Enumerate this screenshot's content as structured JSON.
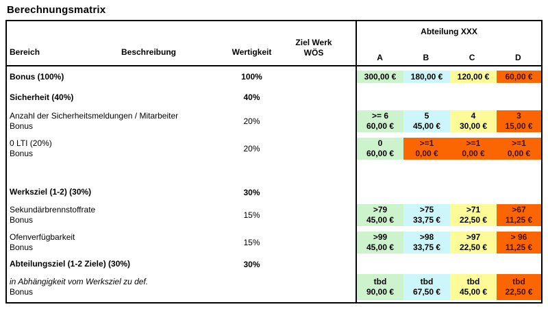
{
  "title": "Berechnungsmatrix",
  "colors": {
    "green": "#ccf3cc",
    "blue": "#ccf6fa",
    "yellow": "#fdfb98",
    "orange": "#fb6603",
    "orange_text": "#431200"
  },
  "header": {
    "bereich": "Bereich",
    "beschreibung": "Beschreibung",
    "wertigkeit": "Wertigkeit",
    "ziel_line1": "Ziel Werk",
    "ziel_line2": "WÖS",
    "abteilung": "Abteilung XXX",
    "cols": [
      "A",
      "B",
      "C",
      "D"
    ]
  },
  "rows": [
    {
      "label": "Bonus (100%)",
      "weight": "100%",
      "cells": [
        {
          "color": "green",
          "l1": "300,00 €"
        },
        {
          "color": "blue",
          "l1": "180,00 €"
        },
        {
          "color": "yellow",
          "l1": "120,00 €"
        },
        {
          "color": "orange",
          "l1": "60,00 €"
        }
      ]
    },
    {
      "label": "Sicherheit (40%)",
      "weight": "40%",
      "cells": []
    },
    {
      "label": "Anzahl der Sicherheitsmeldungen / Mitarbeiter",
      "label2": "Bonus",
      "weight": "20%",
      "cells": [
        {
          "color": "green",
          "l1": ">= 6",
          "l2": "60,00 €"
        },
        {
          "color": "blue",
          "l1": "5",
          "l2": "45,00 €"
        },
        {
          "color": "yellow",
          "l1": "4",
          "l2": "30,00 €"
        },
        {
          "color": "orange",
          "l1": "3",
          "l2": "15,00 €"
        }
      ]
    },
    {
      "label": "0 LTI (20%)",
      "label2": "Bonus",
      "weight": "20%",
      "cells": [
        {
          "color": "green",
          "l1": "0",
          "l2": "60,00 €"
        },
        {
          "color": "orange",
          "l1": ">=1",
          "l2": "0,00 €"
        },
        {
          "color": "orange",
          "l1": ">=1",
          "l2": "0,00 €"
        },
        {
          "color": "orange",
          "l1": ">=1",
          "l2": "0,00 €"
        }
      ]
    },
    {
      "label": "Werksziel (1-2) (30%)",
      "weight": "30%",
      "cells": []
    },
    {
      "label": "Sekundärbrennstoffrate",
      "label2": "Bonus",
      "weight": "15%",
      "cells": [
        {
          "color": "green",
          "l1": ">79",
          "l2": "45,00 €"
        },
        {
          "color": "blue",
          "l1": ">75",
          "l2": "33,75 €"
        },
        {
          "color": "yellow",
          "l1": ">71",
          "l2": "22,50 €"
        },
        {
          "color": "orange",
          "l1": ">67",
          "l2": "11,25 €"
        }
      ]
    },
    {
      "label": "Ofenverfügbarkeit",
      "label2": "Bonus",
      "weight": "15%",
      "cells": [
        {
          "color": "green",
          "l1": ">99",
          "l2": "45,00 €"
        },
        {
          "color": "blue",
          "l1": ">98",
          "l2": "33,75 €"
        },
        {
          "color": "yellow",
          "l1": ">97",
          "l2": "22,50 €"
        },
        {
          "color": "orange",
          "l1": "> 96",
          "l2": "11,25 €"
        }
      ]
    },
    {
      "label": "Abteilungsziel (1-2 Ziele) (30%)",
      "weight": "30%",
      "cells": []
    },
    {
      "label": "in Abhängigkeit vom Werksziel zu def.",
      "label2": "Bonus",
      "weight": "",
      "cells": [
        {
          "color": "green",
          "l1": "tbd",
          "l2": "90,00 €"
        },
        {
          "color": "blue",
          "l1": "tbd",
          "l2": "67,50 €"
        },
        {
          "color": "yellow",
          "l1": "tbd",
          "l2": "45,00 €"
        },
        {
          "color": "orange",
          "l1": "tbd",
          "l2": "22,50 €"
        }
      ]
    }
  ]
}
